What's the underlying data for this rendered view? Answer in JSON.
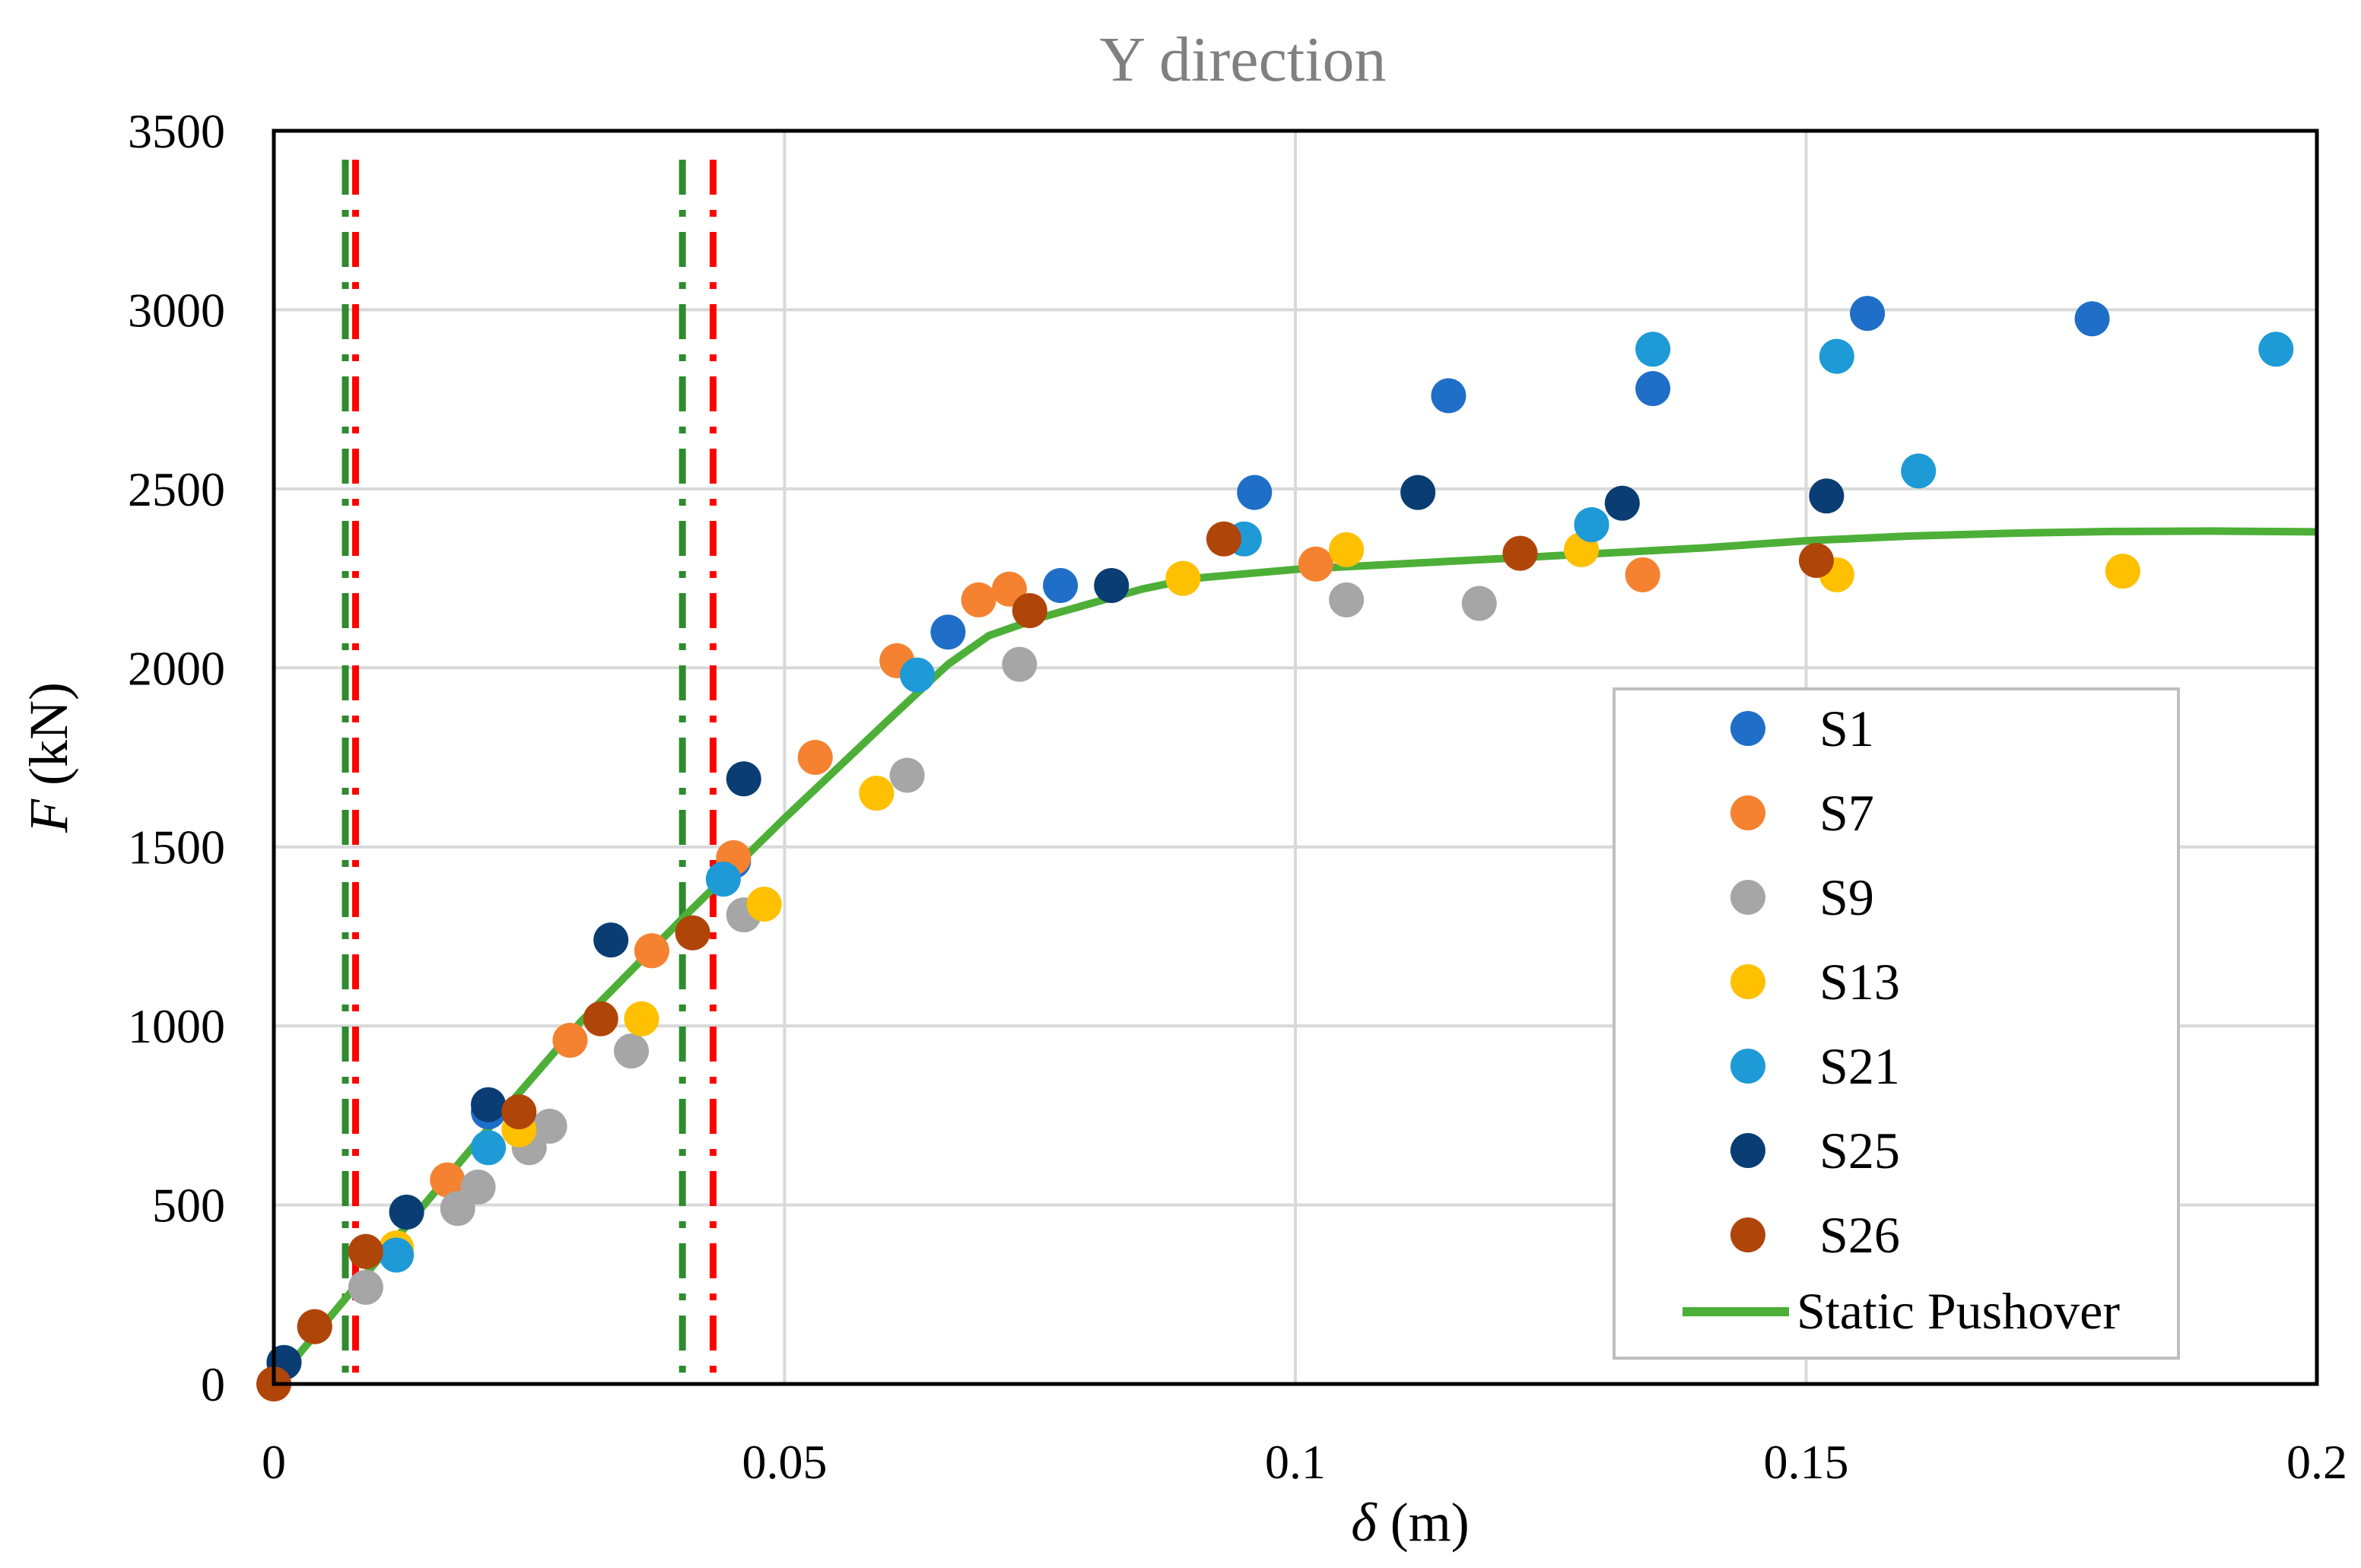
{
  "chart_data": {
    "type": "scatter",
    "title": "Y direction",
    "xlabel_symbol": "δ",
    "xlabel_unit": " (m)",
    "ylabel_symbol": "F",
    "ylabel_unit": " (kN)",
    "xlim": [
      0,
      0.2
    ],
    "ylim": [
      0,
      3500
    ],
    "xticks": [
      0,
      0.05,
      0.1,
      0.15,
      0.2
    ],
    "xtick_labels": [
      "0",
      "0.05",
      "0.1",
      "0.15",
      "0.2"
    ],
    "yticks": [
      0,
      500,
      1000,
      1500,
      2000,
      2500,
      3000,
      3500
    ],
    "ytick_labels": [
      "0",
      "500",
      "1000",
      "1500",
      "2000",
      "2500",
      "3000",
      "3500"
    ],
    "grid": true,
    "legend_position": "right",
    "title_color": "#808080",
    "series": [
      {
        "name": "S1",
        "color": "#1f6ec7",
        "x": [
          0.001,
          0.021,
          0.045,
          0.066,
          0.077,
          0.096,
          0.115,
          0.135,
          0.156,
          0.178
        ],
        "y": [
          60,
          760,
          1460,
          2100,
          2230,
          2490,
          2760,
          2780,
          2990,
          2975
        ]
      },
      {
        "name": "S7",
        "color": "#f58230",
        "x": [
          0.004,
          0.017,
          0.029,
          0.037,
          0.045,
          0.053,
          0.061,
          0.069,
          0.072,
          0.102,
          0.134
        ],
        "y": [
          160,
          570,
          960,
          1210,
          1470,
          1750,
          2020,
          2190,
          2220,
          2290,
          2260
        ]
      },
      {
        "name": "S9",
        "color": "#a6a6a6",
        "x": [
          0.004,
          0.009,
          0.018,
          0.02,
          0.025,
          0.027,
          0.035,
          0.046,
          0.062,
          0.073,
          0.105,
          0.118
        ],
        "y": [
          160,
          270,
          490,
          550,
          660,
          720,
          930,
          1310,
          1700,
          2010,
          2190,
          2180
        ]
      },
      {
        "name": "S13",
        "color": "#ffc000",
        "x": [
          0.012,
          0.024,
          0.036,
          0.048,
          0.059,
          0.089,
          0.105,
          0.128,
          0.153,
          0.181
        ],
        "y": [
          380,
          710,
          1020,
          1340,
          1650,
          2250,
          2330,
          2330,
          2260,
          2270
        ]
      },
      {
        "name": "S21",
        "color": "#1e9ad6",
        "x": [
          0.012,
          0.021,
          0.044,
          0.063,
          0.095,
          0.129,
          0.135,
          0.153,
          0.161,
          0.196
        ],
        "y": [
          360,
          660,
          1410,
          1980,
          2360,
          2400,
          2890,
          2870,
          2550,
          2890
        ]
      },
      {
        "name": "S25",
        "color": "#0a3d73",
        "x": [
          0.001,
          0.013,
          0.021,
          0.033,
          0.046,
          0.082,
          0.112,
          0.132,
          0.152
        ],
        "y": [
          60,
          480,
          780,
          1240,
          1690,
          2230,
          2490,
          2460,
          2480
        ]
      },
      {
        "name": "S26",
        "color": "#b0450a",
        "x": [
          0.0,
          0.004,
          0.009,
          0.024,
          0.032,
          0.041,
          0.074,
          0.093,
          0.122,
          0.151
        ],
        "y": [
          0,
          160,
          370,
          760,
          1020,
          1260,
          2160,
          2360,
          2320,
          2300
        ]
      },
      {
        "name": "Static Pushover",
        "type": "line",
        "color": "#4daf38",
        "x": [
          0,
          0.005,
          0.01,
          0.02,
          0.03,
          0.04,
          0.05,
          0.06,
          0.066,
          0.07,
          0.075,
          0.08,
          0.085,
          0.09,
          0.1,
          0.11,
          0.12,
          0.13,
          0.14,
          0.15,
          0.16,
          0.17,
          0.18,
          0.19,
          0.2
        ],
        "y": [
          0,
          170,
          340,
          680,
          1010,
          1300,
          1580,
          1850,
          2010,
          2090,
          2140,
          2180,
          2220,
          2250,
          2275,
          2290,
          2305,
          2320,
          2335,
          2355,
          2368,
          2376,
          2381,
          2382,
          2380
        ]
      }
    ],
    "reference_lines": [
      {
        "x": 0.007,
        "style": "dash-dot",
        "color": "#2e8b2e"
      },
      {
        "x": 0.008,
        "style": "dash-dot",
        "color": "#ff0000"
      },
      {
        "x": 0.04,
        "style": "dash-dot",
        "color": "#2e8b2e"
      },
      {
        "x": 0.043,
        "style": "dash-dot",
        "color": "#ff0000"
      }
    ]
  }
}
